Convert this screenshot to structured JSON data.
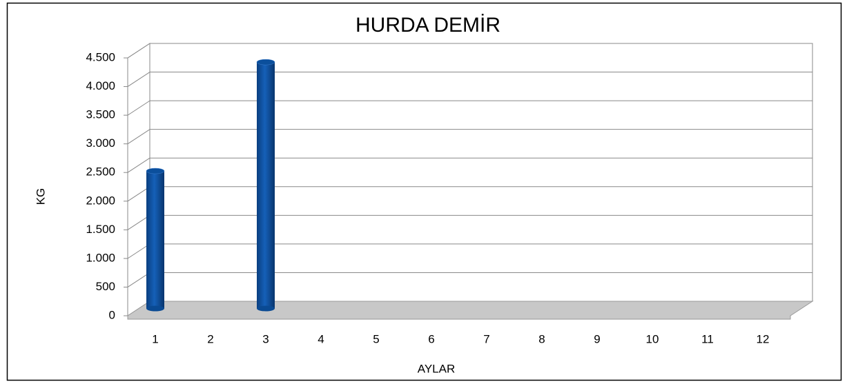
{
  "chart_data": {
    "type": "bar",
    "title": "HURDA DEMİR",
    "x_label": "AYLAR",
    "y_label": "KG",
    "categories": [
      "1",
      "2",
      "3",
      "4",
      "5",
      "6",
      "7",
      "8",
      "9",
      "10",
      "11",
      "12"
    ],
    "values": [
      2400,
      0,
      4300,
      0,
      0,
      0,
      0,
      0,
      0,
      0,
      0,
      0
    ],
    "color": "#0b4f9c",
    "ylim": [
      0,
      4500
    ],
    "yticks": [
      0,
      500,
      {
        "value": 1000,
        "label": "1.000"
      },
      {
        "value": 1500,
        "label": "1.500"
      },
      {
        "value": 2000,
        "label": "2.000"
      },
      {
        "value": 2500,
        "label": "2.500"
      },
      {
        "value": 3000,
        "label": "3.000"
      },
      {
        "value": 3500,
        "label": "3.500"
      },
      {
        "value": 4000,
        "label": "4.000"
      },
      {
        "value": 4500,
        "label": "4.500"
      }
    ],
    "grid": true
  }
}
